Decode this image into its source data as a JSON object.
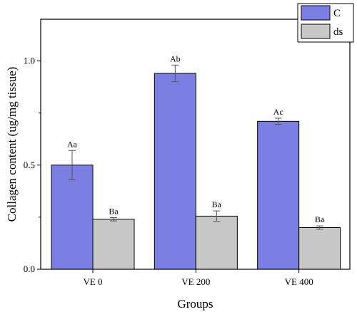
{
  "chart_data": {
    "type": "bar",
    "xlabel": "Groups",
    "ylabel": "Collagen content (ug/mg tissue)",
    "ylim": [
      0,
      1.2
    ],
    "yticks": [
      "0.0",
      "0.5",
      "1.0"
    ],
    "categories": [
      "VE 0",
      "VE 200",
      "VE 400"
    ],
    "series": [
      {
        "name": "C",
        "color": "#7b7fe3",
        "values": [
          0.5,
          0.94,
          0.71
        ],
        "errors": [
          0.07,
          0.04,
          0.015
        ],
        "labels": [
          "Aa",
          "Ab",
          "Ac"
        ]
      },
      {
        "name": "ds",
        "color": "#c8c8c8",
        "values": [
          0.24,
          0.255,
          0.2
        ],
        "errors": [
          0.008,
          0.025,
          0.008
        ],
        "labels": [
          "Ba",
          "Ba",
          "Ba"
        ]
      }
    ],
    "legend_position": "top-right",
    "grid": false
  }
}
